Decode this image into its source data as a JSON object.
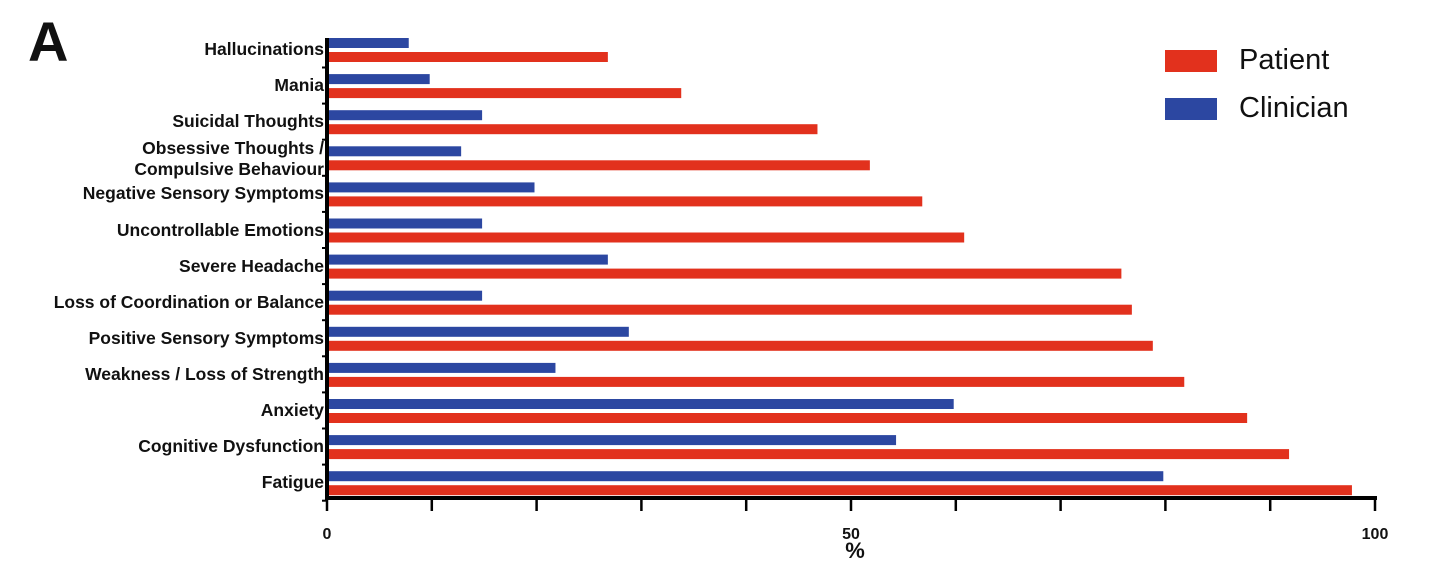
{
  "panel_label": "A",
  "colors": {
    "patient": "#e2311d",
    "clinician": "#2c47a1",
    "axis": "#000000"
  },
  "chart_data": {
    "type": "bar",
    "orientation": "horizontal",
    "title": "",
    "xlabel": "%",
    "ylabel": "",
    "xlim": [
      0,
      100
    ],
    "x_ticks": [
      0,
      10,
      20,
      30,
      40,
      50,
      60,
      70,
      80,
      90,
      100
    ],
    "x_tick_labels": [
      "0",
      "",
      "",
      "",
      "",
      "50",
      "",
      "",
      "",
      "",
      "100"
    ],
    "legend_position": "top-right",
    "categories": [
      "Hallucinations",
      "Mania",
      "Suicidal Thoughts",
      "Obsessive Thoughts /\nCompulsive Behaviour",
      "Negative Sensory Symptoms",
      "Uncontrollable Emotions",
      "Severe Headache",
      "Loss of Coordination or Balance",
      "Positive Sensory Symptoms",
      "Weakness / Loss of Strength",
      "Anxiety",
      "Cognitive Dysfunction",
      "Fatigue"
    ],
    "series": [
      {
        "name": "Patient",
        "color": "#e2311d",
        "values": [
          26.8,
          33.8,
          46.8,
          51.8,
          56.8,
          60.8,
          75.8,
          76.8,
          78.8,
          81.8,
          87.8,
          91.8,
          97.8
        ]
      },
      {
        "name": "Clinician",
        "color": "#2c47a1",
        "values": [
          7.8,
          9.8,
          14.8,
          12.8,
          19.8,
          14.8,
          26.8,
          14.8,
          28.8,
          21.8,
          59.8,
          54.3,
          79.8
        ]
      }
    ]
  }
}
